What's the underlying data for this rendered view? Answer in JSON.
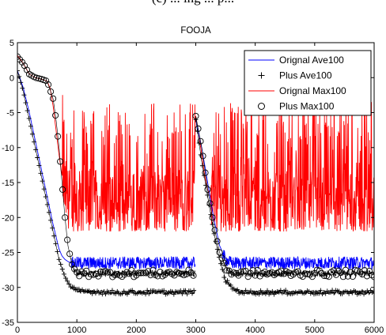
{
  "caption": "(c) ... ing ... p...",
  "chart_data": {
    "type": "line",
    "title": "FOOJA",
    "xlabel": "",
    "ylabel": "",
    "xlim": [
      0,
      6000
    ],
    "ylim": [
      -35,
      5
    ],
    "xticks": [
      "0",
      "1000",
      "2000",
      "3000",
      "4000",
      "5000",
      "6000"
    ],
    "yticks": [
      "5",
      "0",
      "-5",
      "-10",
      "-15",
      "-20",
      "-25",
      "-30",
      "-35"
    ],
    "grid": false,
    "legend_position": "top-right",
    "series": [
      {
        "name": "Orignal Ave100",
        "style": "solid line",
        "color": "#0000ff",
        "x": [
          0,
          100,
          200,
          300,
          400,
          500,
          600,
          700,
          750,
          800,
          850,
          900,
          950,
          1000,
          1500,
          2000,
          2500,
          2990
        ],
        "y": [
          1,
          -1.5,
          -5,
          -9,
          -13,
          -17,
          -21,
          -24.5,
          -25.5,
          -26,
          -26.3,
          -26.5,
          -26.5,
          -26.5,
          -26.5,
          -26.5,
          -26.5,
          -26.5
        ],
        "restart": {
          "x": [
            3000,
            3100,
            3200,
            3300,
            3400,
            3500,
            3600,
            3700,
            3800,
            4000,
            5000,
            6000
          ],
          "y": [
            -6,
            -10,
            -15,
            -20,
            -24,
            -26,
            -26.5,
            -26.5,
            -26.5,
            -26.5,
            -26.5,
            -26.5
          ]
        },
        "noise": 0.9
      },
      {
        "name": "Plus Ave100",
        "style": "plus markers",
        "color": "#000000",
        "x": [
          0,
          100,
          200,
          300,
          400,
          500,
          600,
          700,
          800,
          900,
          1000,
          1500,
          2000,
          2500,
          2990
        ],
        "y": [
          1,
          -2,
          -6,
          -10,
          -14,
          -18,
          -22,
          -26,
          -28.5,
          -30,
          -30.5,
          -30.7,
          -30.7,
          -30.7,
          -30.7
        ],
        "restart": {
          "x": [
            3000,
            3100,
            3200,
            3300,
            3400,
            3500,
            3600,
            3700,
            3800,
            4000,
            5000,
            6000
          ],
          "y": [
            -6,
            -12,
            -17,
            -22,
            -26,
            -29,
            -30,
            -30.5,
            -30.7,
            -30.7,
            -30.7,
            -30.7
          ]
        },
        "noise": 0.3
      },
      {
        "name": "Orignal Max100",
        "style": "solid line",
        "color": "#ff0000",
        "x": [
          0,
          100,
          200,
          300,
          400,
          500,
          550,
          600,
          650,
          700,
          750,
          800,
          850,
          900,
          1000,
          1500,
          2000,
          2500,
          2990
        ],
        "y": [
          3.2,
          2,
          0.5,
          0,
          -0.2,
          -0.5,
          -1.5,
          -4,
          -7.5,
          -11,
          -14,
          -16,
          -17.5,
          -18,
          -18,
          -18,
          -18,
          -18,
          -18
        ],
        "restart": {
          "x": [
            3000,
            3050,
            3100,
            3150,
            3200,
            3300,
            3400,
            3500,
            6000
          ],
          "y": [
            -5.5,
            -8,
            -11,
            -14,
            -16,
            -18,
            -18,
            -18,
            -18
          ]
        },
        "noise_low": -4,
        "noise_high": 12,
        "noise_start": 750
      },
      {
        "name": "Plus Max100",
        "style": "circle markers",
        "color": "#000000",
        "x": [
          0,
          100,
          200,
          300,
          400,
          500,
          600,
          650,
          700,
          750,
          800,
          850,
          900,
          950,
          1000,
          1500,
          2000,
          2500,
          2990
        ],
        "y": [
          3,
          2,
          0.5,
          0,
          -0.2,
          -0.5,
          -3,
          -6,
          -10,
          -15,
          -20,
          -24,
          -26,
          -27.5,
          -28,
          -28,
          -28,
          -28,
          -28
        ],
        "restart": {
          "x": [
            3000,
            3100,
            3200,
            3300,
            3400,
            3500,
            3600,
            3700,
            4000,
            5000,
            6000
          ],
          "y": [
            -5.5,
            -10,
            -16,
            -21,
            -25,
            -27,
            -28,
            -28,
            -28,
            -28,
            -28
          ]
        },
        "noise": 0.5
      }
    ]
  }
}
